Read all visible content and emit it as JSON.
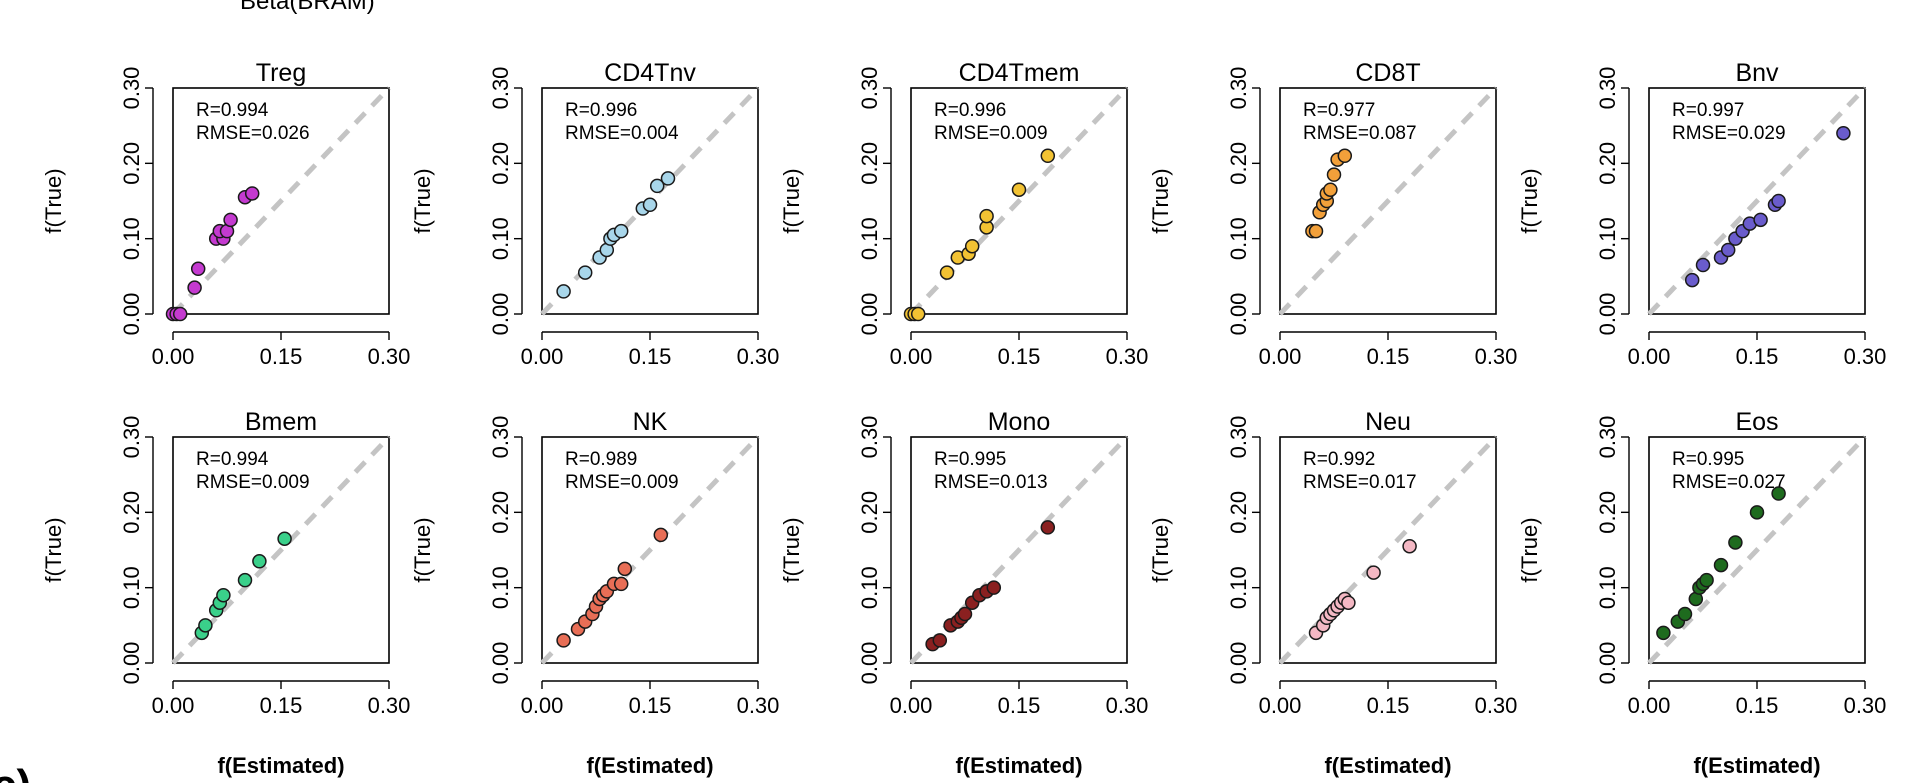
{
  "header_fragment": "Beta(BRAM)",
  "corner_letter": "c)",
  "x_axis_label": "f(Estimated)",
  "y_axis_label": "f(True)",
  "chart_data": [
    {
      "type": "scatter",
      "title": "Treg",
      "stat_r": "R=0.994",
      "stat_rmse": "RMSE=0.026",
      "color": "#c43ad0",
      "xlim": [
        0,
        0.3
      ],
      "ylim": [
        0,
        0.3
      ],
      "xticks": [
        "0.00",
        "0.15",
        "0.30"
      ],
      "yticks": [
        "0.00",
        "0.10",
        "0.20",
        "0.30"
      ],
      "x": [
        0.0,
        0.005,
        0.01,
        0.03,
        0.035,
        0.06,
        0.07,
        0.065,
        0.075,
        0.08,
        0.1,
        0.11
      ],
      "y": [
        0.0,
        0.0,
        0.0,
        0.035,
        0.06,
        0.1,
        0.1,
        0.11,
        0.11,
        0.125,
        0.155,
        0.16
      ]
    },
    {
      "type": "scatter",
      "title": "CD4Tnv",
      "stat_r": "R=0.996",
      "stat_rmse": "RMSE=0.004",
      "color": "#a8d6ea",
      "xlim": [
        0,
        0.3
      ],
      "ylim": [
        0,
        0.3
      ],
      "xticks": [
        "0.00",
        "0.15",
        "0.30"
      ],
      "yticks": [
        "0.00",
        "0.10",
        "0.20",
        "0.30"
      ],
      "x": [
        0.03,
        0.06,
        0.08,
        0.09,
        0.095,
        0.1,
        0.11,
        0.14,
        0.15,
        0.16,
        0.175
      ],
      "y": [
        0.03,
        0.055,
        0.075,
        0.085,
        0.1,
        0.105,
        0.11,
        0.14,
        0.145,
        0.17,
        0.18
      ]
    },
    {
      "type": "scatter",
      "title": "CD4Tmem",
      "stat_r": "R=0.996",
      "stat_rmse": "RMSE=0.009",
      "color": "#f2c233",
      "xlim": [
        0,
        0.3
      ],
      "ylim": [
        0,
        0.3
      ],
      "xticks": [
        "0.00",
        "0.15",
        "0.30"
      ],
      "yticks": [
        "0.00",
        "0.10",
        "0.20",
        "0.30"
      ],
      "x": [
        0.0,
        0.005,
        0.01,
        0.05,
        0.065,
        0.08,
        0.085,
        0.105,
        0.105,
        0.15,
        0.19
      ],
      "y": [
        0.0,
        0.0,
        0.0,
        0.055,
        0.075,
        0.08,
        0.09,
        0.115,
        0.13,
        0.165,
        0.21
      ]
    },
    {
      "type": "scatter",
      "title": "CD8T",
      "stat_r": "R=0.977",
      "stat_rmse": "RMSE=0.087",
      "color": "#f2a03a",
      "xlim": [
        0,
        0.3
      ],
      "ylim": [
        0,
        0.3
      ],
      "xticks": [
        "0.00",
        "0.15",
        "0.30"
      ],
      "yticks": [
        "0.00",
        "0.10",
        "0.20",
        "0.30"
      ],
      "x": [
        0.045,
        0.05,
        0.055,
        0.06,
        0.065,
        0.065,
        0.07,
        0.075,
        0.08,
        0.09
      ],
      "y": [
        0.11,
        0.11,
        0.135,
        0.145,
        0.15,
        0.16,
        0.165,
        0.185,
        0.205,
        0.21
      ]
    },
    {
      "type": "scatter",
      "title": "Bnv",
      "stat_r": "R=0.997",
      "stat_rmse": "RMSE=0.029",
      "color": "#6a5ccc",
      "xlim": [
        0,
        0.3
      ],
      "ylim": [
        0,
        0.3
      ],
      "xticks": [
        "0.00",
        "0.15",
        "0.30"
      ],
      "yticks": [
        "0.00",
        "0.10",
        "0.20",
        "0.30"
      ],
      "x": [
        0.06,
        0.075,
        0.1,
        0.11,
        0.12,
        0.13,
        0.14,
        0.155,
        0.175,
        0.18,
        0.27
      ],
      "y": [
        0.045,
        0.065,
        0.075,
        0.085,
        0.1,
        0.11,
        0.12,
        0.125,
        0.145,
        0.15,
        0.24
      ]
    },
    {
      "type": "scatter",
      "title": "Bmem",
      "stat_r": "R=0.994",
      "stat_rmse": "RMSE=0.009",
      "color": "#3ad08a",
      "xlim": [
        0,
        0.3
      ],
      "ylim": [
        0,
        0.3
      ],
      "xticks": [
        "0.00",
        "0.15",
        "0.30"
      ],
      "yticks": [
        "0.00",
        "0.10",
        "0.20",
        "0.30"
      ],
      "x": [
        0.04,
        0.045,
        0.06,
        0.065,
        0.07,
        0.1,
        0.12,
        0.155
      ],
      "y": [
        0.04,
        0.05,
        0.07,
        0.08,
        0.09,
        0.11,
        0.135,
        0.165
      ]
    },
    {
      "type": "scatter",
      "title": "NK",
      "stat_r": "R=0.989",
      "stat_rmse": "RMSE=0.009",
      "color": "#e86e56",
      "xlim": [
        0,
        0.3
      ],
      "ylim": [
        0,
        0.3
      ],
      "xticks": [
        "0.00",
        "0.15",
        "0.30"
      ],
      "yticks": [
        "0.00",
        "0.10",
        "0.20",
        "0.30"
      ],
      "x": [
        0.03,
        0.05,
        0.06,
        0.07,
        0.075,
        0.08,
        0.085,
        0.09,
        0.1,
        0.11,
        0.115,
        0.165
      ],
      "y": [
        0.03,
        0.045,
        0.055,
        0.065,
        0.075,
        0.085,
        0.09,
        0.095,
        0.105,
        0.105,
        0.125,
        0.17
      ]
    },
    {
      "type": "scatter",
      "title": "Mono",
      "stat_r": "R=0.995",
      "stat_rmse": "RMSE=0.013",
      "color": "#8a2020",
      "xlim": [
        0,
        0.3
      ],
      "ylim": [
        0,
        0.3
      ],
      "xticks": [
        "0.00",
        "0.15",
        "0.30"
      ],
      "yticks": [
        "0.00",
        "0.10",
        "0.20",
        "0.30"
      ],
      "x": [
        0.03,
        0.04,
        0.055,
        0.065,
        0.07,
        0.075,
        0.085,
        0.095,
        0.105,
        0.115,
        0.19
      ],
      "y": [
        0.025,
        0.03,
        0.05,
        0.055,
        0.06,
        0.065,
        0.08,
        0.09,
        0.095,
        0.1,
        0.18
      ]
    },
    {
      "type": "scatter",
      "title": "Neu",
      "stat_r": "R=0.992",
      "stat_rmse": "RMSE=0.017",
      "color": "#f4b8c4",
      "xlim": [
        0,
        0.3
      ],
      "ylim": [
        0,
        0.3
      ],
      "xticks": [
        "0.00",
        "0.15",
        "0.30"
      ],
      "yticks": [
        "0.00",
        "0.10",
        "0.20",
        "0.30"
      ],
      "x": [
        0.05,
        0.06,
        0.065,
        0.07,
        0.075,
        0.08,
        0.085,
        0.09,
        0.095,
        0.13,
        0.18
      ],
      "y": [
        0.04,
        0.05,
        0.06,
        0.065,
        0.07,
        0.075,
        0.08,
        0.085,
        0.08,
        0.12,
        0.155
      ]
    },
    {
      "type": "scatter",
      "title": "Eos",
      "stat_r": "R=0.995",
      "stat_rmse": "RMSE=0.027",
      "color": "#1e6b1e",
      "xlim": [
        0,
        0.3
      ],
      "ylim": [
        0,
        0.3
      ],
      "xticks": [
        "0.00",
        "0.15",
        "0.30"
      ],
      "yticks": [
        "0.00",
        "0.10",
        "0.20",
        "0.30"
      ],
      "x": [
        0.02,
        0.04,
        0.05,
        0.065,
        0.07,
        0.075,
        0.08,
        0.1,
        0.12,
        0.15,
        0.18
      ],
      "y": [
        0.04,
        0.055,
        0.065,
        0.085,
        0.1,
        0.105,
        0.11,
        0.13,
        0.16,
        0.2,
        0.225
      ]
    }
  ]
}
